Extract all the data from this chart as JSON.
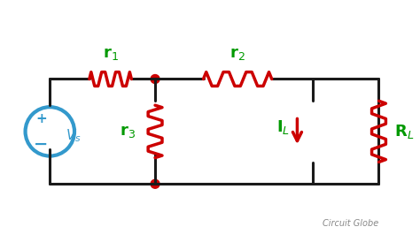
{
  "bg_color": "#ffffff",
  "wire_color": "#1a1a1a",
  "resistor_color": "#cc0000",
  "source_color": "#3399cc",
  "node_color": "#cc0000",
  "label_color": "#009900",
  "arrow_color": "#cc0000",
  "watermark": "Circuit Globe",
  "watermark_color": "#888888"
}
